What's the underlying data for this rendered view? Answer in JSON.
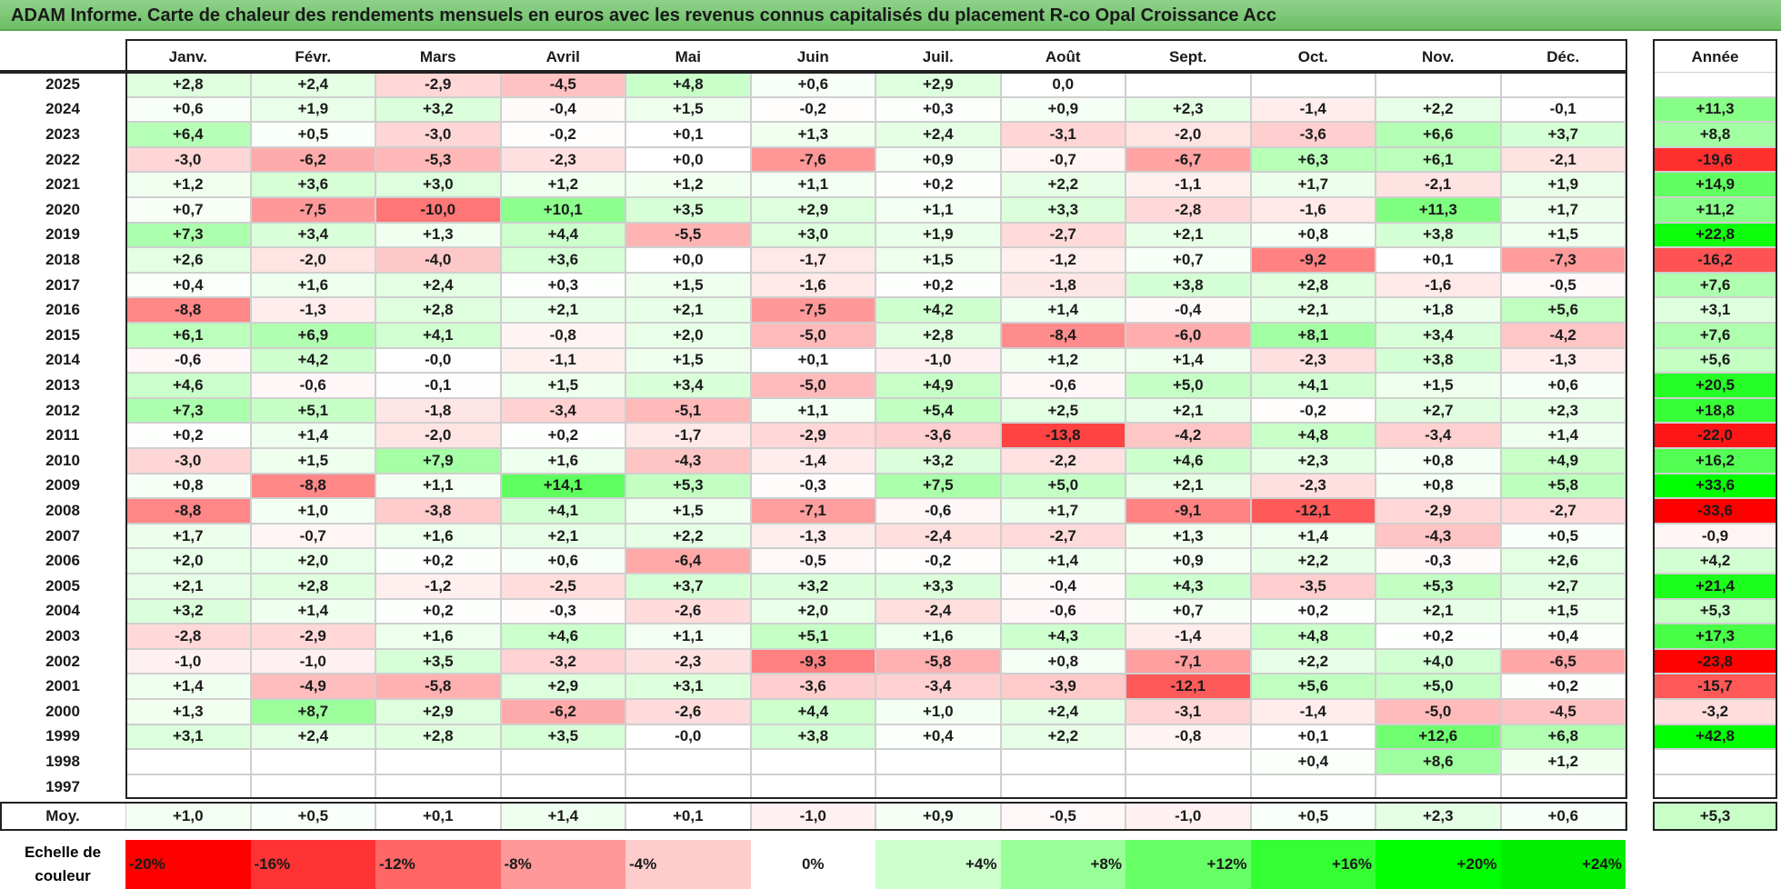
{
  "title": "ADAM Informe. Carte de chaleur des rendements mensuels en euros avec les revenus connus capitalisés du placement R-co Opal Croissance Acc",
  "chart_data": {
    "type": "heatmap",
    "months": [
      "Janv.",
      "Févr.",
      "Mars",
      "Avril",
      "Mai",
      "Juin",
      "Juil.",
      "Août",
      "Sept.",
      "Oct.",
      "Nov.",
      "Déc."
    ],
    "year_header": "Année",
    "avg_label": "Moy.",
    "rows": [
      {
        "year": "2025",
        "months": [
          "+2,8",
          "+2,4",
          "-2,9",
          "-4,5",
          "+4,8",
          "+0,6",
          "+2,9",
          "0,0",
          "",
          "",
          "",
          ""
        ],
        "annual": ""
      },
      {
        "year": "2024",
        "months": [
          "+0,6",
          "+1,9",
          "+3,2",
          "-0,4",
          "+1,5",
          "-0,2",
          "+0,3",
          "+0,9",
          "+2,3",
          "-1,4",
          "+2,2",
          "-0,1"
        ],
        "annual": "+11,3"
      },
      {
        "year": "2023",
        "months": [
          "+6,4",
          "+0,5",
          "-3,0",
          "-0,2",
          "+0,1",
          "+1,3",
          "+2,4",
          "-3,1",
          "-2,0",
          "-3,6",
          "+6,6",
          "+3,7"
        ],
        "annual": "+8,8"
      },
      {
        "year": "2022",
        "months": [
          "-3,0",
          "-6,2",
          "-5,3",
          "-2,3",
          "+0,0",
          "-7,6",
          "+0,9",
          "-0,7",
          "-6,7",
          "+6,3",
          "+6,1",
          "-2,1"
        ],
        "annual": "-19,6"
      },
      {
        "year": "2021",
        "months": [
          "+1,2",
          "+3,6",
          "+3,0",
          "+1,2",
          "+1,2",
          "+1,1",
          "+0,2",
          "+2,2",
          "-1,1",
          "+1,7",
          "-2,1",
          "+1,9"
        ],
        "annual": "+14,9"
      },
      {
        "year": "2020",
        "months": [
          "+0,7",
          "-7,5",
          "-10,0",
          "+10,1",
          "+3,5",
          "+2,9",
          "+1,1",
          "+3,3",
          "-2,8",
          "-1,6",
          "+11,3",
          "+1,7"
        ],
        "annual": "+11,2"
      },
      {
        "year": "2019",
        "months": [
          "+7,3",
          "+3,4",
          "+1,3",
          "+4,4",
          "-5,5",
          "+3,0",
          "+1,9",
          "-2,7",
          "+2,1",
          "+0,8",
          "+3,8",
          "+1,5"
        ],
        "annual": "+22,8"
      },
      {
        "year": "2018",
        "months": [
          "+2,6",
          "-2,0",
          "-4,0",
          "+3,6",
          "+0,0",
          "-1,7",
          "+1,5",
          "-1,2",
          "+0,7",
          "-9,2",
          "+0,1",
          "-7,3"
        ],
        "annual": "-16,2"
      },
      {
        "year": "2017",
        "months": [
          "+0,4",
          "+1,6",
          "+2,4",
          "+0,3",
          "+1,5",
          "-1,6",
          "+0,2",
          "-1,8",
          "+3,8",
          "+2,8",
          "-1,6",
          "-0,5"
        ],
        "annual": "+7,6"
      },
      {
        "year": "2016",
        "months": [
          "-8,8",
          "-1,3",
          "+2,8",
          "+2,1",
          "+2,1",
          "-7,5",
          "+4,2",
          "+1,4",
          "-0,4",
          "+2,1",
          "+1,8",
          "+5,6"
        ],
        "annual": "+3,1"
      },
      {
        "year": "2015",
        "months": [
          "+6,1",
          "+6,9",
          "+4,1",
          "-0,8",
          "+2,0",
          "-5,0",
          "+2,8",
          "-8,4",
          "-6,0",
          "+8,1",
          "+3,4",
          "-4,2"
        ],
        "annual": "+7,6"
      },
      {
        "year": "2014",
        "months": [
          "-0,6",
          "+4,2",
          "-0,0",
          "-1,1",
          "+1,5",
          "+0,1",
          "-1,0",
          "+1,2",
          "+1,4",
          "-2,3",
          "+3,8",
          "-1,3"
        ],
        "annual": "+5,6"
      },
      {
        "year": "2013",
        "months": [
          "+4,6",
          "-0,6",
          "-0,1",
          "+1,5",
          "+3,4",
          "-5,0",
          "+4,9",
          "-0,6",
          "+5,0",
          "+4,1",
          "+1,5",
          "+0,6"
        ],
        "annual": "+20,5"
      },
      {
        "year": "2012",
        "months": [
          "+7,3",
          "+5,1",
          "-1,8",
          "-3,4",
          "-5,1",
          "+1,1",
          "+5,4",
          "+2,5",
          "+2,1",
          "-0,2",
          "+2,7",
          "+2,3"
        ],
        "annual": "+18,8"
      },
      {
        "year": "2011",
        "months": [
          "+0,2",
          "+1,4",
          "-2,0",
          "+0,2",
          "-1,7",
          "-2,9",
          "-3,6",
          "-13,8",
          "-4,2",
          "+4,8",
          "-3,4",
          "+1,4"
        ],
        "annual": "-22,0"
      },
      {
        "year": "2010",
        "months": [
          "-3,0",
          "+1,5",
          "+7,9",
          "+1,6",
          "-4,3",
          "-1,4",
          "+3,2",
          "-2,2",
          "+4,6",
          "+2,3",
          "+0,8",
          "+4,9"
        ],
        "annual": "+16,2"
      },
      {
        "year": "2009",
        "months": [
          "+0,8",
          "-8,8",
          "+1,1",
          "+14,1",
          "+5,3",
          "-0,3",
          "+7,5",
          "+5,0",
          "+2,1",
          "-2,3",
          "+0,8",
          "+5,8"
        ],
        "annual": "+33,6"
      },
      {
        "year": "2008",
        "months": [
          "-8,8",
          "+1,0",
          "-3,8",
          "+4,1",
          "+1,5",
          "-7,1",
          "-0,6",
          "+1,7",
          "-9,1",
          "-12,1",
          "-2,9",
          "-2,7"
        ],
        "annual": "-33,6"
      },
      {
        "year": "2007",
        "months": [
          "+1,7",
          "-0,7",
          "+1,6",
          "+2,1",
          "+2,2",
          "-1,3",
          "-2,4",
          "-2,7",
          "+1,3",
          "+1,4",
          "-4,3",
          "+0,5"
        ],
        "annual": "-0,9"
      },
      {
        "year": "2006",
        "months": [
          "+2,0",
          "+2,0",
          "+0,2",
          "+0,6",
          "-6,4",
          "-0,5",
          "-0,2",
          "+1,4",
          "+0,9",
          "+2,2",
          "-0,3",
          "+2,6"
        ],
        "annual": "+4,2"
      },
      {
        "year": "2005",
        "months": [
          "+2,1",
          "+2,8",
          "-1,2",
          "-2,5",
          "+3,7",
          "+3,2",
          "+3,3",
          "-0,4",
          "+4,3",
          "-3,5",
          "+5,3",
          "+2,7"
        ],
        "annual": "+21,4"
      },
      {
        "year": "2004",
        "months": [
          "+3,2",
          "+1,4",
          "+0,2",
          "-0,3",
          "-2,6",
          "+2,0",
          "-2,4",
          "-0,6",
          "+0,7",
          "+0,2",
          "+2,1",
          "+1,5"
        ],
        "annual": "+5,3"
      },
      {
        "year": "2003",
        "months": [
          "-2,8",
          "-2,9",
          "+1,6",
          "+4,6",
          "+1,1",
          "+5,1",
          "+1,6",
          "+4,3",
          "-1,4",
          "+4,8",
          "+0,2",
          "+0,4"
        ],
        "annual": "+17,3"
      },
      {
        "year": "2002",
        "months": [
          "-1,0",
          "-1,0",
          "+3,5",
          "-3,2",
          "-2,3",
          "-9,3",
          "-5,8",
          "+0,8",
          "-7,1",
          "+2,2",
          "+4,0",
          "-6,5"
        ],
        "annual": "-23,8"
      },
      {
        "year": "2001",
        "months": [
          "+1,4",
          "-4,9",
          "-5,8",
          "+2,9",
          "+3,1",
          "-3,6",
          "-3,4",
          "-3,9",
          "-12,1",
          "+5,6",
          "+5,0",
          "+0,2"
        ],
        "annual": "-15,7"
      },
      {
        "year": "2000",
        "months": [
          "+1,3",
          "+8,7",
          "+2,9",
          "-6,2",
          "-2,6",
          "+4,4",
          "+1,0",
          "+2,4",
          "-3,1",
          "-1,4",
          "-5,0",
          "-4,5"
        ],
        "annual": "-3,2"
      },
      {
        "year": "1999",
        "months": [
          "+3,1",
          "+2,4",
          "+2,8",
          "+3,5",
          "-0,0",
          "+3,8",
          "+0,4",
          "+2,2",
          "-0,8",
          "+0,1",
          "+12,6",
          "+6,8"
        ],
        "annual": "+42,8"
      },
      {
        "year": "1998",
        "months": [
          "",
          "",
          "",
          "",
          "",
          "",
          "",
          "",
          "",
          "+0,4",
          "+8,6",
          "+1,2"
        ],
        "annual": ""
      },
      {
        "year": "1997",
        "months": [
          "",
          "",
          "",
          "",
          "",
          "",
          "",
          "",
          "",
          "",
          "",
          ""
        ],
        "annual": ""
      }
    ],
    "average": {
      "months": [
        "+1,0",
        "+0,5",
        "+0,1",
        "+1,4",
        "+0,1",
        "-1,0",
        "+0,9",
        "-0,5",
        "-1,0",
        "+0,5",
        "+2,3",
        "+0,6"
      ],
      "annual": "+5,3"
    },
    "color_scale": {
      "label": "Echelle de couleur",
      "steps": [
        {
          "label": "-20%",
          "color": "#ff0000"
        },
        {
          "label": "-16%",
          "color": "#ff3333"
        },
        {
          "label": "-12%",
          "color": "#ff6666"
        },
        {
          "label": "-8%",
          "color": "#ff9999"
        },
        {
          "label": "-4%",
          "color": "#ffcccc"
        },
        {
          "label": "0%",
          "color": "#ffffff"
        },
        {
          "label": "+4%",
          "color": "#ccffcc"
        },
        {
          "label": "+8%",
          "color": "#99ff99"
        },
        {
          "label": "+12%",
          "color": "#66ff66"
        },
        {
          "label": "+16%",
          "color": "#33ff33"
        },
        {
          "label": "+20%",
          "color": "#00ff00"
        },
        {
          "label": "+24%",
          "color": "#00ee00"
        }
      ]
    }
  }
}
